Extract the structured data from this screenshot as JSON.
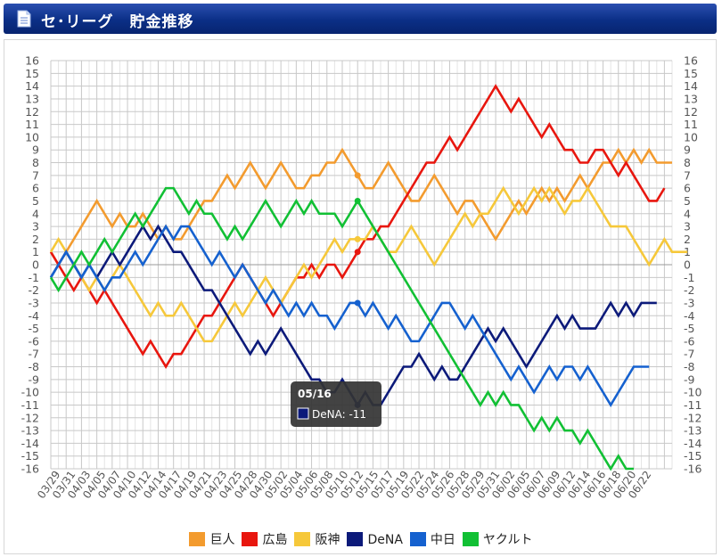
{
  "header": {
    "title": "セ･リーグ　貯金推移",
    "icon": "document-icon"
  },
  "colors": {
    "header_bg": "#0b2f86",
    "grid_major": "#c8c8c8",
    "grid_minor": "#e4e4e4",
    "axis_text": "#555555",
    "tooltip_bg": "#333333"
  },
  "tooltip": {
    "date": "05/16",
    "label": "DeNA: -11",
    "series": "DeNA",
    "value": -11
  },
  "chart_data": {
    "type": "line",
    "title": "",
    "xlabel": "",
    "ylabel": "",
    "ylim": [
      -16,
      16
    ],
    "yticks": [
      "16",
      "15",
      "14",
      "13",
      "12",
      "11",
      "10",
      "9",
      "8",
      "7",
      "6",
      "5",
      "4",
      "3",
      "2",
      "1",
      "0",
      "-1",
      "-2",
      "-3",
      "-4",
      "-5",
      "-6",
      "-7",
      "-8",
      "-9",
      "-10",
      "-11",
      "-12",
      "-13",
      "-14",
      "-15",
      "-16"
    ],
    "x_labels": [
      "03/29",
      "03/31",
      "04/03",
      "04/05",
      "04/07",
      "04/10",
      "04/12",
      "04/14",
      "04/17",
      "04/19",
      "04/21",
      "04/23",
      "04/25",
      "04/28",
      "04/30",
      "05/02",
      "05/04",
      "05/06",
      "05/08",
      "05/10",
      "05/12",
      "05/15",
      "05/17",
      "05/19",
      "05/22",
      "05/24",
      "05/26",
      "05/28",
      "05/29",
      "05/31",
      "06/02",
      "06/05",
      "06/07",
      "06/09",
      "06/12",
      "06/14",
      "06/16",
      "06/18",
      "06/20",
      "06/22"
    ],
    "grid": true,
    "legend_position": "bottom",
    "series": [
      {
        "name": "巨人",
        "color": "#f39b2e",
        "values": [
          1,
          0,
          1,
          2,
          3,
          4,
          5,
          4,
          3,
          4,
          3,
          3,
          4,
          3,
          2,
          3,
          2,
          2,
          3,
          4,
          5,
          5,
          6,
          7,
          6,
          7,
          8,
          7,
          6,
          7,
          8,
          7,
          6,
          6,
          7,
          7,
          8,
          8,
          9,
          8,
          7,
          6,
          6,
          7,
          8,
          7,
          6,
          5,
          5,
          6,
          7,
          6,
          5,
          4,
          5,
          5,
          4,
          3,
          2,
          3,
          4,
          5,
          4,
          5,
          6,
          5,
          6,
          5,
          6,
          7,
          6,
          7,
          8,
          8,
          9,
          8,
          9,
          8,
          9,
          8,
          8,
          8
        ]
      },
      {
        "name": "広島",
        "color": "#e8160e",
        "values": [
          1,
          0,
          -1,
          -2,
          -1,
          -2,
          -3,
          -2,
          -3,
          -4,
          -5,
          -6,
          -7,
          -6,
          -7,
          -8,
          -7,
          -7,
          -6,
          -5,
          -4,
          -4,
          -3,
          -2,
          -1,
          0,
          -1,
          -2,
          -3,
          -4,
          -3,
          -2,
          -1,
          -1,
          0,
          -1,
          0,
          0,
          -1,
          0,
          1,
          2,
          2,
          3,
          3,
          4,
          5,
          6,
          7,
          8,
          8,
          9,
          10,
          9,
          10,
          11,
          12,
          13,
          14,
          13,
          12,
          13,
          12,
          11,
          10,
          11,
          10,
          9,
          9,
          8,
          8,
          9,
          9,
          8,
          7,
          8,
          7,
          6,
          5,
          5,
          6
        ]
      },
      {
        "name": "阪神",
        "color": "#f6c83a",
        "values": [
          1,
          2,
          1,
          0,
          -1,
          -2,
          -1,
          -2,
          -1,
          0,
          -1,
          -2,
          -3,
          -4,
          -3,
          -4,
          -4,
          -3,
          -4,
          -5,
          -6,
          -6,
          -5,
          -4,
          -3,
          -4,
          -3,
          -2,
          -1,
          -2,
          -3,
          -2,
          -1,
          0,
          -1,
          0,
          1,
          2,
          1,
          2,
          2,
          2,
          3,
          2,
          1,
          1,
          2,
          3,
          2,
          1,
          0,
          1,
          2,
          3,
          4,
          3,
          4,
          4,
          5,
          6,
          5,
          4,
          5,
          6,
          5,
          6,
          5,
          4,
          5,
          5,
          6,
          5,
          4,
          3,
          3,
          3,
          2,
          1,
          0,
          1,
          2,
          1,
          1,
          1
        ]
      },
      {
        "name": "DeNA",
        "color": "#0c1a7a",
        "values": [
          -1,
          0,
          1,
          0,
          -1,
          0,
          -1,
          0,
          1,
          0,
          1,
          2,
          3,
          2,
          3,
          2,
          1,
          1,
          0,
          -1,
          -2,
          -2,
          -3,
          -4,
          -5,
          -6,
          -7,
          -6,
          -7,
          -6,
          -5,
          -6,
          -7,
          -8,
          -9,
          -9,
          -10,
          -10,
          -9,
          -10,
          -11,
          -10,
          -11,
          -11,
          -10,
          -9,
          -8,
          -8,
          -7,
          -8,
          -9,
          -8,
          -9,
          -9,
          -8,
          -7,
          -6,
          -5,
          -6,
          -5,
          -6,
          -7,
          -8,
          -7,
          -6,
          -5,
          -4,
          -5,
          -4,
          -5,
          -5,
          -5,
          -4,
          -3,
          -4,
          -3,
          -4,
          -3,
          -3,
          -3
        ]
      },
      {
        "name": "中日",
        "color": "#1561cf",
        "values": [
          -1,
          0,
          1,
          0,
          -1,
          0,
          -1,
          -2,
          -1,
          -1,
          0,
          1,
          0,
          1,
          2,
          3,
          2,
          3,
          3,
          2,
          1,
          0,
          1,
          0,
          -1,
          0,
          -1,
          -2,
          -3,
          -2,
          -3,
          -4,
          -3,
          -4,
          -3,
          -4,
          -4,
          -5,
          -4,
          -3,
          -3,
          -4,
          -3,
          -4,
          -5,
          -4,
          -5,
          -6,
          -6,
          -5,
          -4,
          -3,
          -3,
          -4,
          -5,
          -4,
          -5,
          -6,
          -7,
          -8,
          -9,
          -8,
          -9,
          -10,
          -9,
          -8,
          -9,
          -8,
          -8,
          -9,
          -8,
          -9,
          -10,
          -11,
          -10,
          -9,
          -8,
          -8,
          -8
        ]
      },
      {
        "name": "ヤクルト",
        "color": "#11c034",
        "values": [
          -1,
          -2,
          -1,
          0,
          1,
          0,
          1,
          2,
          1,
          2,
          3,
          4,
          3,
          4,
          5,
          6,
          6,
          5,
          4,
          5,
          4,
          4,
          3,
          2,
          3,
          2,
          3,
          4,
          5,
          4,
          3,
          4,
          5,
          4,
          5,
          4,
          4,
          4,
          3,
          4,
          5,
          4,
          3,
          2,
          1,
          0,
          -1,
          -2,
          -3,
          -4,
          -5,
          -6,
          -7,
          -8,
          -9,
          -10,
          -11,
          -10,
          -11,
          -10,
          -11,
          -11,
          -12,
          -13,
          -12,
          -13,
          -12,
          -13,
          -13,
          -14,
          -13,
          -14,
          -15,
          -16,
          -15,
          -16,
          -16
        ]
      }
    ]
  }
}
